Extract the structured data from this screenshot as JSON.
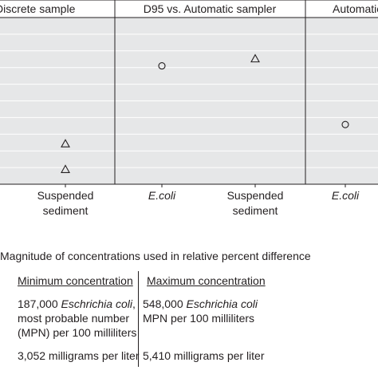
{
  "chart_data": {
    "type": "scatter",
    "panels": [
      {
        "title": "Discrete sample",
        "categories": [
          "Suspended sediment"
        ],
        "points": [
          {
            "category": "Suspended sediment",
            "marker": "triangle",
            "level": 0.243
          },
          {
            "category": "Suspended sediment",
            "marker": "triangle",
            "level": 0.089
          }
        ]
      },
      {
        "title": "D95 vs. Automatic sampler",
        "categories": [
          "E.coli",
          "Suspended sediment"
        ],
        "points": [
          {
            "category": "E.coli",
            "marker": "circle",
            "level": 0.71
          },
          {
            "category": "Suspended sediment",
            "marker": "triangle",
            "level": 0.753
          }
        ]
      },
      {
        "title": "Automatic",
        "categories": [
          "E.coli"
        ],
        "points": [
          {
            "category": "E.coli",
            "marker": "circle",
            "level": 0.358
          }
        ]
      }
    ],
    "grid": true,
    "ytick_count": 11,
    "colors": {
      "background": "#e6e7e8",
      "grid": "#ffffff",
      "frame": "#231f20",
      "marker": "#231f20"
    }
  },
  "legend": {
    "title": "Magnitude of concentrations used in relative percent difference",
    "min_heading": "Minimum concentration",
    "max_heading": "Maximum concentration",
    "min_ecoli_prefix": "187,000 ",
    "min_ecoli_species": "Eschrichia coli",
    "min_ecoli_suffix": ",",
    "min_ecoli_line2": "most probable number",
    "min_ecoli_line3": "(MPN) per 100 milliliters",
    "max_ecoli_prefix": "548,000 ",
    "max_ecoli_species": "Eschrichia coli",
    "max_ecoli_line2": "MPN per 100 milliliters",
    "min_sediment": "3,052 milligrams per liter",
    "max_sediment": "5,410 milligrams per liter"
  }
}
